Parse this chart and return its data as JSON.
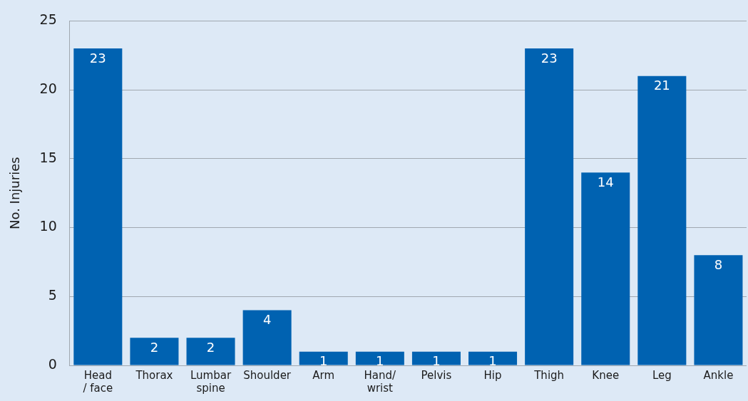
{
  "chart_data": {
    "type": "bar",
    "ylabel": "No. Injuries",
    "categories": [
      "Head\n/ face",
      "Thorax",
      "Lumbar\nspine",
      "Shoulder",
      "Arm",
      "Hand/\nwrist",
      "Pelvis",
      "Hip",
      "Thigh",
      "Knee",
      "Leg",
      "Ankle"
    ],
    "values": [
      23,
      2,
      2,
      4,
      1,
      1,
      1,
      1,
      23,
      14,
      21,
      8
    ],
    "color": "#0062b1",
    "ylim": [
      0,
      25
    ],
    "yticks": [
      0,
      5,
      10,
      15,
      20,
      25
    ],
    "grid": "y",
    "data_labels": true
  }
}
